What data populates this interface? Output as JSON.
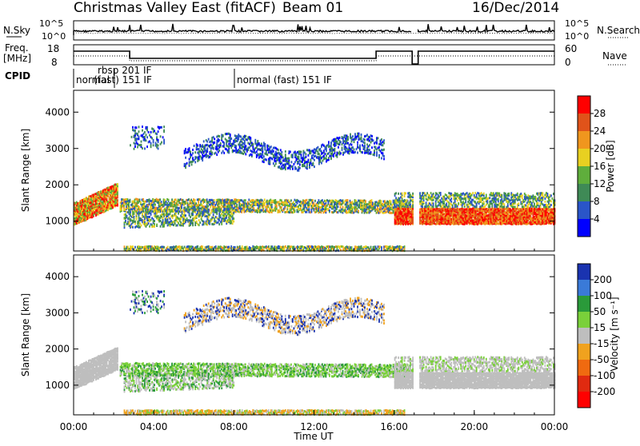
{
  "header": {
    "title": "Christmas Valley East (fitACF)",
    "beam": "Beam 01",
    "date": "16/Dec/2014"
  },
  "strip_panels": {
    "nsky_label": "N.Sky",
    "nsearch_label": "N.Search",
    "nsky_ticks": [
      "10^5",
      "10^0"
    ],
    "nsearch_ticks": [
      "10^5",
      "10^0"
    ],
    "freq_label_line1": "Freq.",
    "freq_label_line2": "[MHz]",
    "freq_ticks": [
      "18",
      "8"
    ],
    "nave_label": "Nave",
    "nave_ticks": [
      "60",
      "0"
    ],
    "cpid_label": "CPID",
    "cpid_segments": [
      {
        "text": "normal",
        "start": 0.0
      },
      {
        "text": "rbsp 201 IF",
        "start": 1.7
      },
      {
        "text": "(fast) 151 IF",
        "start": 1.7
      },
      {
        "text": "normal (fast) 151 IF",
        "start": 8.0
      }
    ]
  },
  "chart_data": [
    {
      "type": "heatmap",
      "name": "power-panel",
      "xlabel": "",
      "ylabel": "Slant Range [km]",
      "xlim": [
        0,
        24
      ],
      "ylim": [
        180,
        4600
      ],
      "yticks": [
        "1000",
        "2000",
        "3000",
        "4000"
      ],
      "colorbar_label": "Power [dB]",
      "colorbar_ticks": [
        "4",
        "8",
        "12",
        "16",
        "20",
        "24",
        "28"
      ],
      "colorbar_colors": [
        "#0000ff",
        "#2a55c8",
        "#3f8a56",
        "#5fae3c",
        "#e8d021",
        "#f0961e",
        "#e0531a",
        "#ff0000"
      ]
    },
    {
      "type": "heatmap",
      "name": "velocity-panel",
      "xlabel": "Time UT",
      "ylabel": "Slant Range [km]",
      "xlim": [
        0,
        24
      ],
      "ylim": [
        180,
        4600
      ],
      "xticks": [
        "00:00",
        "04:00",
        "08:00",
        "12:00",
        "16:00",
        "20:00",
        "00:00"
      ],
      "yticks": [
        "1000",
        "2000",
        "3000",
        "4000"
      ],
      "colorbar_label": "Velocity [m s⁻¹]",
      "colorbar_ticks": [
        "200",
        "100",
        "50",
        "15",
        "-15",
        "-50",
        "-100",
        "-200"
      ],
      "colorbar_colors": [
        "#1a33b0",
        "#3a7ad8",
        "#2a9a3a",
        "#7ad03a",
        "#bebebe",
        "#f0a21e",
        "#f06a10",
        "#e02a10",
        "#ff0000"
      ]
    }
  ]
}
